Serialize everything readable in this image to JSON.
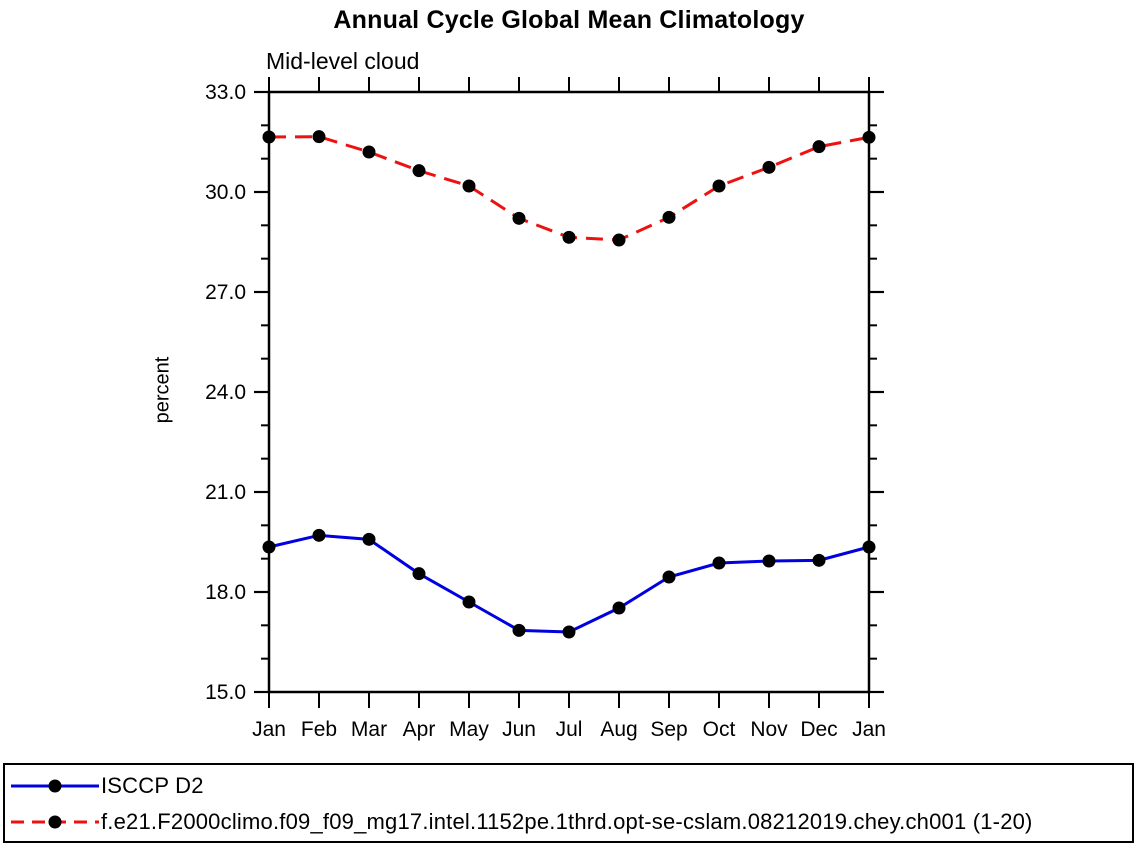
{
  "chart_data": {
    "type": "line",
    "title": "Annual Cycle Global Mean Climatology",
    "subtitle": "Mid-level cloud",
    "ylabel": "percent",
    "xlabel": "",
    "categories": [
      "Jan",
      "Feb",
      "Mar",
      "Apr",
      "May",
      "Jun",
      "Jul",
      "Aug",
      "Sep",
      "Oct",
      "Nov",
      "Dec",
      "Jan"
    ],
    "ylim": [
      15.0,
      33.0
    ],
    "y_major_ticks": [
      15,
      18,
      21,
      24,
      27,
      30,
      33
    ],
    "y_major_tick_labels": [
      "15.0",
      "18.0",
      "21.0",
      "24.0",
      "27.0",
      "30.0",
      "33.0"
    ],
    "y_minor_ticks": [
      16,
      17,
      19,
      20,
      22,
      23,
      25,
      26,
      28,
      29,
      31,
      32
    ],
    "grid": false,
    "legend_position": "bottom-outside-box",
    "axis_color": "#000000",
    "marker": {
      "shape": "circle",
      "color": "#000000"
    },
    "series": [
      {
        "name": "ISCCP D2",
        "color": "#0000e0",
        "line_style": "solid",
        "values": [
          19.35,
          19.7,
          19.58,
          18.55,
          17.7,
          16.85,
          16.8,
          17.52,
          18.45,
          18.87,
          18.93,
          18.95,
          19.35
        ]
      },
      {
        "name": "f.e21.F2000climo.f09_f09_mg17.intel.1152pe.1thrd.opt-se-cslam.08212019.chey.ch001 (1-20)",
        "color": "#ee1111",
        "line_style": "dashed",
        "values": [
          31.65,
          31.66,
          31.2,
          30.64,
          30.18,
          29.21,
          28.64,
          28.56,
          29.24,
          30.18,
          30.74,
          31.36,
          31.64
        ]
      }
    ]
  }
}
